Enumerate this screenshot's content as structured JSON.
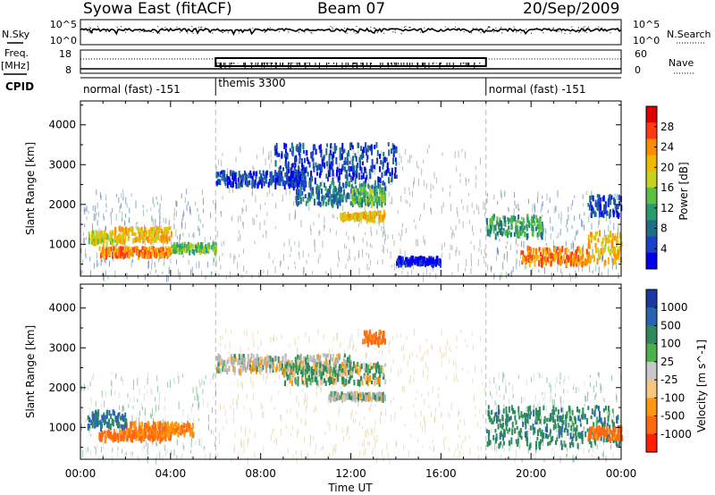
{
  "header": {
    "station": "Syowa East (fitACF)",
    "beam": "Beam 07",
    "date": "20/Sep/2009"
  },
  "noise_panel": {
    "left_label": "N.Sky",
    "left_ticks": [
      "10^5",
      "10^0"
    ],
    "right_label": "N.Search",
    "right_ticks": [
      "10^5",
      "10^0"
    ]
  },
  "freq_panel": {
    "left_label_line1": "Freq.",
    "left_label_line2": "[MHz]",
    "left_ticks": [
      "18",
      "8"
    ],
    "right_label": "Nave",
    "right_ticks": [
      "60",
      "0"
    ]
  },
  "cpid": {
    "label": "CPID",
    "segments": [
      {
        "label": "normal (fast) -151",
        "start_hour": 0,
        "end_hour": 6
      },
      {
        "label": "themis 3300",
        "start_hour": 6,
        "end_hour": 18
      },
      {
        "label": "normal (fast) -151",
        "start_hour": 18,
        "end_hour": 24
      }
    ]
  },
  "colors": {
    "grid_dash": "#bbbbbb",
    "ground_scatter": "#b4b4b4"
  },
  "chart_data": [
    {
      "type": "heatmap",
      "title": "",
      "xlabel": "",
      "ylabel": "Slant Range [km]",
      "xlim": [
        0,
        24
      ],
      "ylim": [
        200,
        4600
      ],
      "y_ticks": [
        1000,
        2000,
        3000,
        4000
      ],
      "colorbar_label": "Power [dB]",
      "colorbar_ticks": [
        "28",
        "24",
        "20",
        "16",
        "12",
        "8",
        "4"
      ],
      "colorbar_colors": [
        "#e00000",
        "#ff3a10",
        "#ff8c00",
        "#f0b800",
        "#c8d020",
        "#5cc040",
        "#2a9c6c",
        "#1e6e86",
        "#1a42c8",
        "#0000ee"
      ],
      "series": [
        {
          "x": [
            0.8,
            4.0
          ],
          "y": [
            700,
            900
          ],
          "level": 7
        },
        {
          "x": [
            0.3,
            1.5
          ],
          "y": [
            1000,
            1300
          ],
          "level": 5
        },
        {
          "x": [
            1.5,
            4.0
          ],
          "y": [
            1050,
            1400
          ],
          "level": 6
        },
        {
          "x": [
            4.0,
            6.0
          ],
          "y": [
            800,
            1000
          ],
          "level": 4
        },
        {
          "x": [
            6.0,
            10.0
          ],
          "y": [
            2450,
            2800
          ],
          "level": 1
        },
        {
          "x": [
            8.5,
            14.0
          ],
          "y": [
            2600,
            3500
          ],
          "level": 1
        },
        {
          "x": [
            9.5,
            13.5
          ],
          "y": [
            2000,
            2550
          ],
          "level": 2
        },
        {
          "x": [
            12.0,
            13.5
          ],
          "y": [
            2000,
            2400
          ],
          "level": 4
        },
        {
          "x": [
            11.5,
            12.5
          ],
          "y": [
            1650,
            1750
          ],
          "level": 6
        },
        {
          "x": [
            12.5,
            13.5
          ],
          "y": [
            1600,
            1800
          ],
          "level": 6
        },
        {
          "x": [
            14.0,
            16.0
          ],
          "y": [
            500,
            650
          ],
          "level": 0
        },
        {
          "x": [
            18.0,
            20.5
          ],
          "y": [
            1200,
            1700
          ],
          "level": 3
        },
        {
          "x": [
            19.5,
            22.5
          ],
          "y": [
            500,
            900
          ],
          "level": 7
        },
        {
          "x": [
            22.5,
            24.0
          ],
          "y": [
            500,
            1300
          ],
          "level": 6
        },
        {
          "x": [
            22.5,
            24.0
          ],
          "y": [
            1700,
            2200
          ],
          "level": 1
        }
      ]
    },
    {
      "type": "heatmap",
      "title": "",
      "xlabel": "Time UT",
      "ylabel": "Slant Range [km]",
      "xlim": [
        0,
        24
      ],
      "ylim": [
        200,
        4600
      ],
      "x_ticks": [
        "00:00",
        "04:00",
        "08:00",
        "12:00",
        "16:00",
        "20:00",
        "00:00"
      ],
      "y_ticks": [
        1000,
        2000,
        3000,
        4000
      ],
      "colorbar_label": "Velocity [m s^-1]",
      "colorbar_ticks": [
        "1000",
        "500",
        "100",
        "25",
        "-25",
        "-100",
        "-500",
        "-1000"
      ],
      "colorbar_colors": [
        "#1a3aa0",
        "#2a64b0",
        "#2e8a5c",
        "#4cb04c",
        "#c8c8c8",
        "#f5c880",
        "#ff9810",
        "#ff6a10",
        "#ff2000"
      ],
      "series": [
        {
          "x": [
            0.8,
            4.0
          ],
          "y": [
            700,
            900
          ],
          "velocity": -400
        },
        {
          "x": [
            2.0,
            5.0
          ],
          "y": [
            800,
            1100
          ],
          "velocity": -300
        },
        {
          "x": [
            0.3,
            2.0
          ],
          "y": [
            1000,
            1400
          ],
          "velocity": 300
        },
        {
          "x": [
            6.0,
            12.0
          ],
          "y": [
            2400,
            2800
          ],
          "velocity": 0
        },
        {
          "x": [
            9.0,
            13.5
          ],
          "y": [
            2100,
            2600
          ],
          "velocity": 40
        },
        {
          "x": [
            12.5,
            13.5
          ],
          "y": [
            3100,
            3400
          ],
          "velocity": -400
        },
        {
          "x": [
            11.0,
            13.5
          ],
          "y": [
            1700,
            1850
          ],
          "velocity": 0
        },
        {
          "x": [
            18.0,
            24.0
          ],
          "y": [
            500,
            1500
          ],
          "velocity": 200
        },
        {
          "x": [
            22.5,
            24.0
          ],
          "y": [
            700,
            1000
          ],
          "velocity": -400
        }
      ]
    }
  ]
}
